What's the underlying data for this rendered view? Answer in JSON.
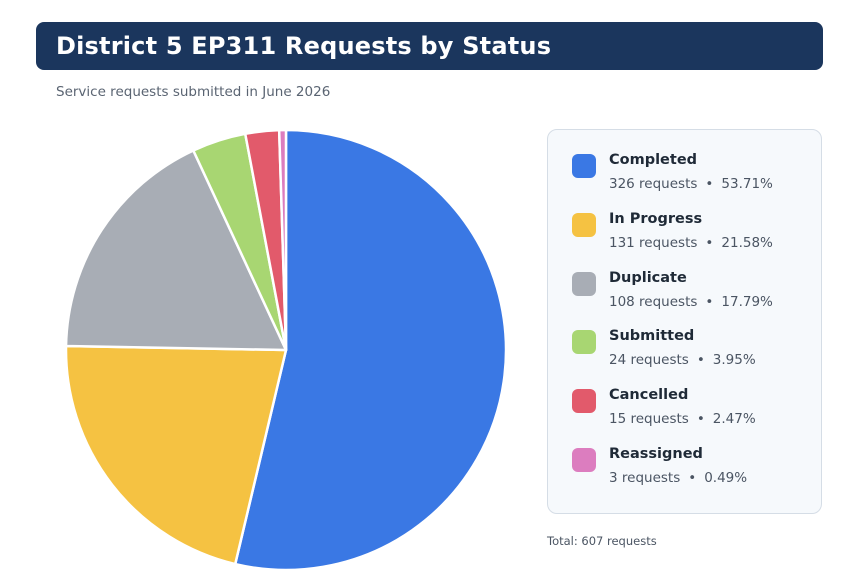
{
  "header": {
    "title": "District 5 EP311 Requests by Status",
    "subtitle": "Service requests submitted in June 2026"
  },
  "legend": {
    "items": [
      {
        "label": "Completed",
        "count": "326 requests",
        "percent": "53.71%"
      },
      {
        "label": "In Progress",
        "count": "131 requests",
        "percent": "21.58%"
      },
      {
        "label": "Duplicate",
        "count": "108 requests",
        "percent": "17.79%"
      },
      {
        "label": "Submitted",
        "count": "24 requests",
        "percent": "3.95%"
      },
      {
        "label": "Cancelled",
        "count": "15 requests",
        "percent": "2.47%"
      },
      {
        "label": "Reassigned",
        "count": "3 requests",
        "percent": "0.49%"
      }
    ],
    "separator": "•"
  },
  "footer": {
    "total": "Total: 607 requests"
  },
  "chart_data": {
    "type": "pie",
    "title": "District 5 EP311 Requests by Status",
    "subtitle": "Service requests submitted in June 2026",
    "categories": [
      "Completed",
      "In Progress",
      "Duplicate",
      "Submitted",
      "Cancelled",
      "Reassigned"
    ],
    "values": [
      326,
      131,
      108,
      24,
      15,
      3
    ],
    "percentages": [
      53.71,
      21.58,
      17.79,
      3.95,
      2.47,
      0.49
    ],
    "colors": [
      "#3a78e4",
      "#f5c242",
      "#a8adb5",
      "#a8d672",
      "#e25a6b",
      "#dc7dbf"
    ],
    "total": 607,
    "start": "12 o'clock",
    "direction": "clockwise",
    "legend_position": "right"
  }
}
